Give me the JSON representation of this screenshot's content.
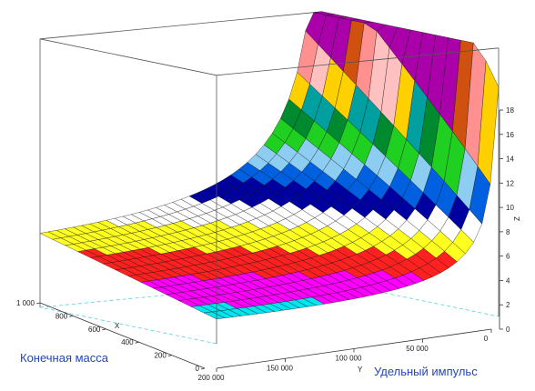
{
  "chart_data": {
    "type": "surface",
    "title": "",
    "x_axis": {
      "label": "X",
      "ticks": [
        "0",
        "200",
        "400",
        "600",
        "800",
        "1 000"
      ],
      "range": [
        0,
        1000
      ]
    },
    "y_axis": {
      "label": "Y",
      "ticks": [
        "0",
        "50 000",
        "100 000",
        "150 000",
        "200 000"
      ],
      "range": [
        0,
        200000
      ]
    },
    "z_axis": {
      "label": "Z",
      "ticks": [
        "0",
        "2",
        "4",
        "6",
        "8",
        "10",
        "12",
        "14",
        "16",
        "18"
      ],
      "range": [
        0,
        18
      ]
    },
    "captions": {
      "x": "Конечная масса",
      "y": "Удельный импульс"
    },
    "grid": false,
    "colors": {
      "background": "#ffffff",
      "box_lines": "#555555",
      "base_lines": "#5ad0dc",
      "bands": [
        "#000000",
        "#00e5f0",
        "#ff00ff",
        "#ff2020",
        "#ffff20",
        "#ffffff",
        "#0000a0",
        "#0060e0",
        "#8ecdf2",
        "#20d020",
        "#008a30",
        "#00a0a0",
        "#ffd000",
        "#ffc0c0",
        "#ff9090",
        "#d05010",
        "#aa00aa"
      ]
    }
  },
  "labels": {
    "caption_x": "Конечная масса",
    "caption_y": "Удельный импульс"
  }
}
